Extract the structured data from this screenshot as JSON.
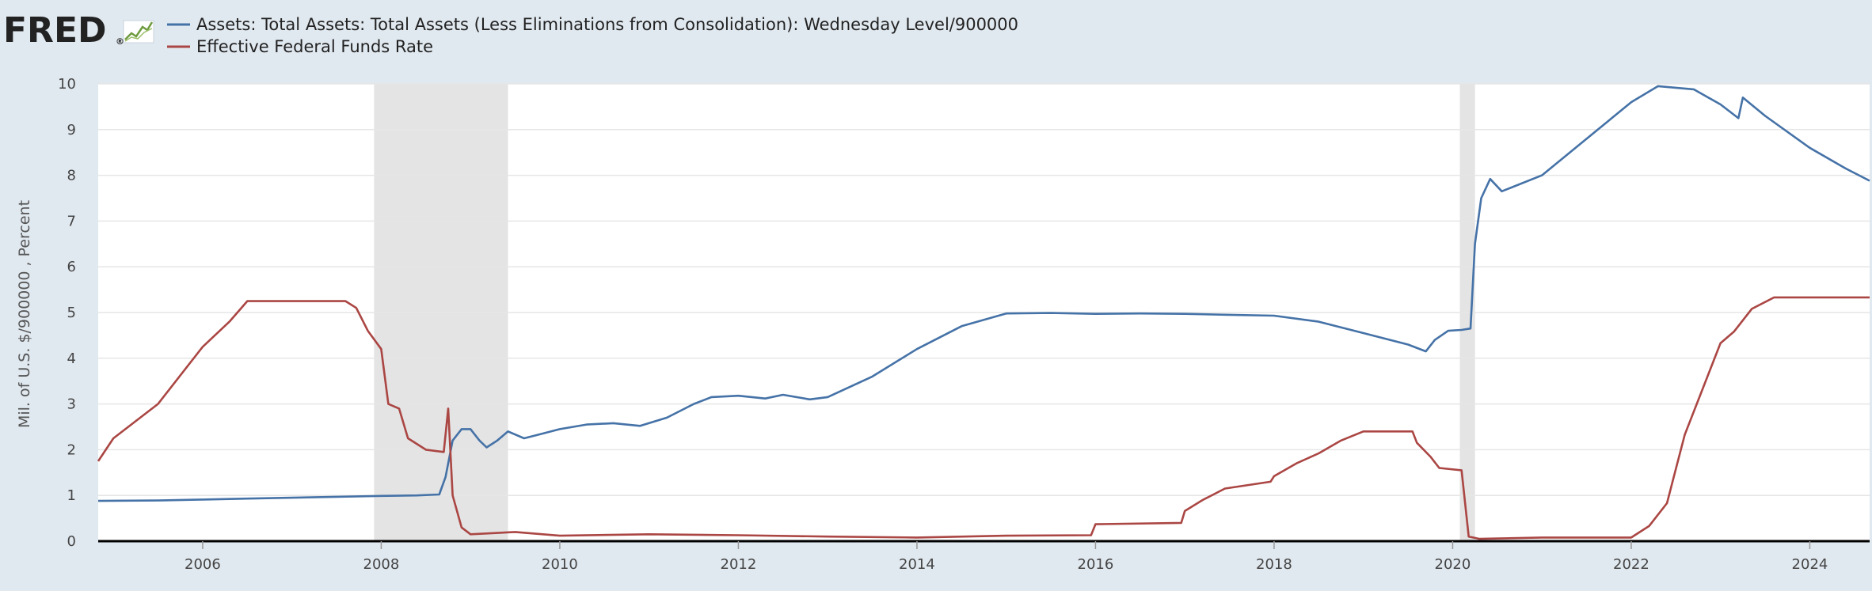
{
  "logo": {
    "text": "FRED",
    "trademark": "®",
    "icon": "line-chart-icon"
  },
  "chart_data": {
    "type": "line",
    "ylabel": "Mil. of U.S. $/900000 , Percent",
    "ylim": [
      0,
      10
    ],
    "yticks": [
      0,
      1,
      2,
      3,
      4,
      5,
      6,
      7,
      8,
      9,
      10
    ],
    "xlim": [
      2004.83,
      2024.67
    ],
    "xticks": [
      2006,
      2008,
      2010,
      2012,
      2014,
      2016,
      2018,
      2020,
      2022,
      2024
    ],
    "grid": "horizontal",
    "legend_position": "top-left",
    "recessions": [
      [
        2007.92,
        2009.42
      ],
      [
        2020.08,
        2020.25
      ]
    ],
    "series": [
      {
        "name": "Assets: Total Assets: Total Assets (Less Eliminations from Consolidation): Wednesday Level/900000",
        "color": "#4572a7",
        "points": [
          [
            2004.83,
            0.88
          ],
          [
            2005.5,
            0.89
          ],
          [
            2006.0,
            0.91
          ],
          [
            2006.5,
            0.93
          ],
          [
            2007.0,
            0.95
          ],
          [
            2007.5,
            0.97
          ],
          [
            2008.0,
            0.99
          ],
          [
            2008.4,
            1.0
          ],
          [
            2008.65,
            1.02
          ],
          [
            2008.72,
            1.4
          ],
          [
            2008.8,
            2.2
          ],
          [
            2008.9,
            2.45
          ],
          [
            2009.0,
            2.45
          ],
          [
            2009.1,
            2.2
          ],
          [
            2009.18,
            2.05
          ],
          [
            2009.3,
            2.2
          ],
          [
            2009.42,
            2.4
          ],
          [
            2009.6,
            2.25
          ],
          [
            2009.8,
            2.35
          ],
          [
            2010.0,
            2.45
          ],
          [
            2010.3,
            2.55
          ],
          [
            2010.6,
            2.58
          ],
          [
            2010.9,
            2.52
          ],
          [
            2011.2,
            2.7
          ],
          [
            2011.5,
            3.0
          ],
          [
            2011.7,
            3.15
          ],
          [
            2012.0,
            3.18
          ],
          [
            2012.3,
            3.12
          ],
          [
            2012.5,
            3.2
          ],
          [
            2012.8,
            3.1
          ],
          [
            2013.0,
            3.15
          ],
          [
            2013.5,
            3.6
          ],
          [
            2014.0,
            4.2
          ],
          [
            2014.5,
            4.7
          ],
          [
            2015.0,
            4.98
          ],
          [
            2015.5,
            4.99
          ],
          [
            2016.0,
            4.97
          ],
          [
            2016.5,
            4.98
          ],
          [
            2017.0,
            4.97
          ],
          [
            2017.5,
            4.95
          ],
          [
            2018.0,
            4.93
          ],
          [
            2018.5,
            4.8
          ],
          [
            2019.0,
            4.55
          ],
          [
            2019.5,
            4.3
          ],
          [
            2019.7,
            4.15
          ],
          [
            2019.8,
            4.4
          ],
          [
            2019.95,
            4.6
          ],
          [
            2020.1,
            4.62
          ],
          [
            2020.2,
            4.65
          ],
          [
            2020.25,
            6.5
          ],
          [
            2020.32,
            7.5
          ],
          [
            2020.42,
            7.92
          ],
          [
            2020.55,
            7.65
          ],
          [
            2021.0,
            8.0
          ],
          [
            2021.5,
            8.8
          ],
          [
            2022.0,
            9.6
          ],
          [
            2022.3,
            9.95
          ],
          [
            2022.7,
            9.88
          ],
          [
            2023.0,
            9.55
          ],
          [
            2023.2,
            9.25
          ],
          [
            2023.25,
            9.7
          ],
          [
            2023.5,
            9.3
          ],
          [
            2024.0,
            8.6
          ],
          [
            2024.4,
            8.15
          ],
          [
            2024.67,
            7.88
          ]
        ]
      },
      {
        "name": "Effective Federal Funds Rate",
        "color": "#aa4643",
        "points": [
          [
            2004.83,
            1.75
          ],
          [
            2005.0,
            2.25
          ],
          [
            2005.5,
            3.0
          ],
          [
            2006.0,
            4.25
          ],
          [
            2006.3,
            4.8
          ],
          [
            2006.5,
            5.25
          ],
          [
            2007.0,
            5.25
          ],
          [
            2007.6,
            5.25
          ],
          [
            2007.72,
            5.1
          ],
          [
            2007.85,
            4.6
          ],
          [
            2008.0,
            4.2
          ],
          [
            2008.08,
            3.0
          ],
          [
            2008.2,
            2.9
          ],
          [
            2008.3,
            2.25
          ],
          [
            2008.5,
            2.0
          ],
          [
            2008.7,
            1.95
          ],
          [
            2008.75,
            2.9
          ],
          [
            2008.8,
            1.0
          ],
          [
            2008.9,
            0.3
          ],
          [
            2009.0,
            0.15
          ],
          [
            2009.5,
            0.2
          ],
          [
            2010.0,
            0.12
          ],
          [
            2011.0,
            0.15
          ],
          [
            2012.0,
            0.13
          ],
          [
            2013.0,
            0.1
          ],
          [
            2014.0,
            0.08
          ],
          [
            2015.0,
            0.12
          ],
          [
            2015.95,
            0.13
          ],
          [
            2016.0,
            0.37
          ],
          [
            2016.96,
            0.4
          ],
          [
            2017.0,
            0.66
          ],
          [
            2017.2,
            0.9
          ],
          [
            2017.45,
            1.15
          ],
          [
            2017.96,
            1.3
          ],
          [
            2018.0,
            1.42
          ],
          [
            2018.25,
            1.7
          ],
          [
            2018.5,
            1.92
          ],
          [
            2018.75,
            2.2
          ],
          [
            2019.0,
            2.4
          ],
          [
            2019.55,
            2.4
          ],
          [
            2019.6,
            2.15
          ],
          [
            2019.75,
            1.85
          ],
          [
            2019.85,
            1.6
          ],
          [
            2020.1,
            1.55
          ],
          [
            2020.18,
            0.1
          ],
          [
            2020.3,
            0.05
          ],
          [
            2021.0,
            0.08
          ],
          [
            2022.0,
            0.08
          ],
          [
            2022.2,
            0.33
          ],
          [
            2022.4,
            0.83
          ],
          [
            2022.5,
            1.58
          ],
          [
            2022.6,
            2.33
          ],
          [
            2022.75,
            3.08
          ],
          [
            2022.9,
            3.83
          ],
          [
            2023.0,
            4.33
          ],
          [
            2023.15,
            4.58
          ],
          [
            2023.35,
            5.08
          ],
          [
            2023.6,
            5.33
          ],
          [
            2024.67,
            5.33
          ]
        ]
      }
    ]
  }
}
